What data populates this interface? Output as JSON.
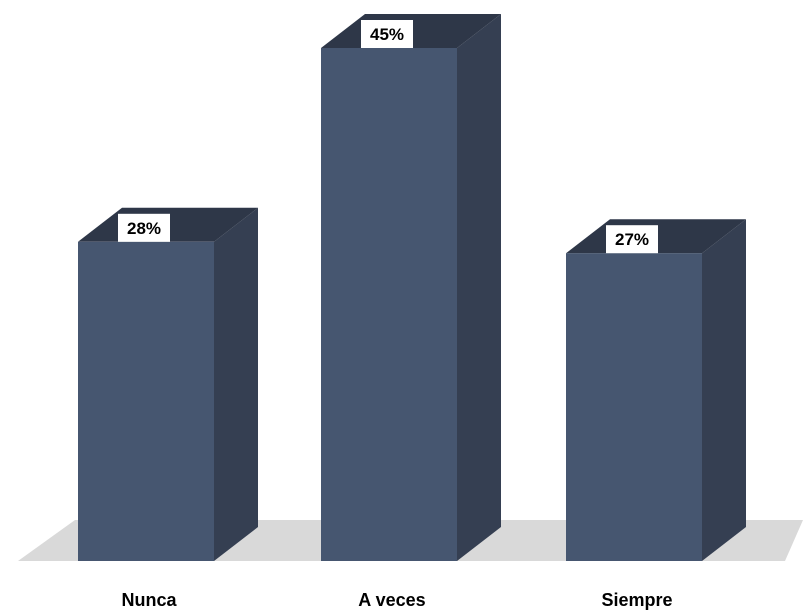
{
  "chart_data": {
    "type": "bar",
    "categories": [
      "Nunca",
      "A veces",
      "Siempre"
    ],
    "values": [
      28,
      45,
      27
    ],
    "value_labels": [
      "28%",
      "45%",
      "27%"
    ],
    "unit": "%",
    "style": "3d-column",
    "ylim": [
      0,
      45
    ],
    "grid": false,
    "legend": "none",
    "colors": {
      "bar_front": "#465670",
      "bar_side": "#353f52",
      "bar_top": "#2e3748",
      "floor": "#d9d9d9",
      "label_box": "#ffffff",
      "text": "#000000"
    }
  }
}
